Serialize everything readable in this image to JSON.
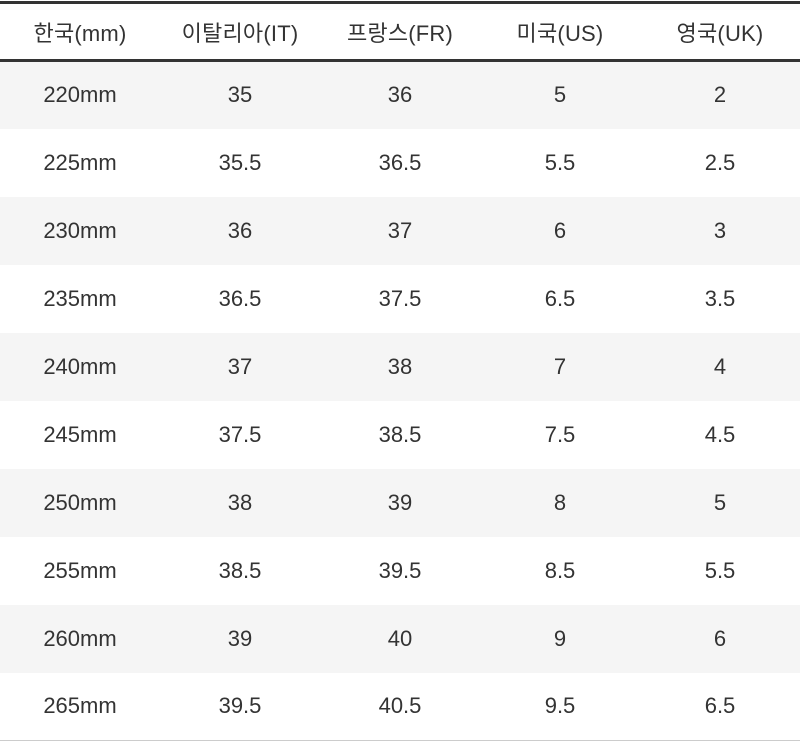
{
  "chart_data": {
    "type": "table",
    "title": "",
    "columns": [
      "한국(mm)",
      "이탈리아(IT)",
      "프랑스(FR)",
      "미국(US)",
      "영국(UK)"
    ],
    "rows": [
      [
        "220mm",
        "35",
        "36",
        "5",
        "2"
      ],
      [
        "225mm",
        "35.5",
        "36.5",
        "5.5",
        "2.5"
      ],
      [
        "230mm",
        "36",
        "37",
        "6",
        "3"
      ],
      [
        "235mm",
        "36.5",
        "37.5",
        "6.5",
        "3.5"
      ],
      [
        "240mm",
        "37",
        "38",
        "7",
        "4"
      ],
      [
        "245mm",
        "37.5",
        "38.5",
        "7.5",
        "4.5"
      ],
      [
        "250mm",
        "38",
        "39",
        "8",
        "5"
      ],
      [
        "255mm",
        "38.5",
        "39.5",
        "8.5",
        "5.5"
      ],
      [
        "260mm",
        "39",
        "40",
        "9",
        "6"
      ],
      [
        "265mm",
        "39.5",
        "40.5",
        "9.5",
        "6.5"
      ]
    ],
    "layout": {
      "striped_rows": "odd-rows-shaded-starting-first",
      "column_alignment": "center",
      "gridlines": "horizontal-rules-only"
    }
  },
  "colors": {
    "text": "#333333",
    "rule": "#333333",
    "alt_row_bg": "#f5f5f5",
    "end_rule": "#cccccc",
    "background": "#ffffff"
  }
}
